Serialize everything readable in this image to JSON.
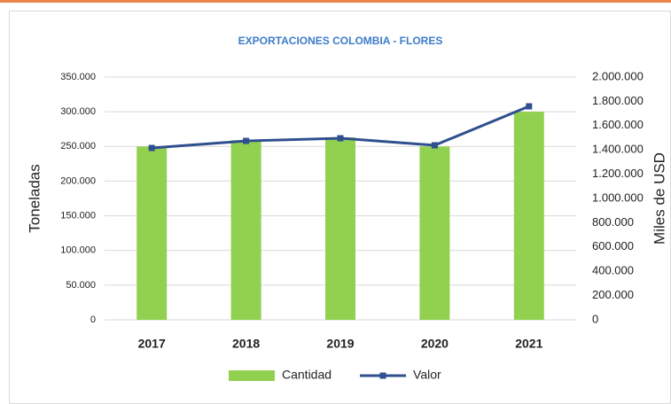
{
  "chart_data": {
    "type": "bar-line",
    "title": "EXPORTACIONES COLOMBIA - FLORES",
    "categories": [
      "2017",
      "2018",
      "2019",
      "2020",
      "2021"
    ],
    "series": [
      {
        "name": "Cantidad",
        "color": "#92d050",
        "type": "bar",
        "values": [
          250000,
          259000,
          263000,
          250000,
          300000
        ]
      },
      {
        "name": "Valor",
        "color": "#2f4f8f",
        "type": "line",
        "axis": "y2",
        "values": [
          1416000,
          1474000,
          1496000,
          1438000,
          1759000
        ]
      }
    ],
    "y_label": "Toneladas",
    "y2_label": "Miles de USD",
    "ylim": [
      0,
      350000
    ],
    "yticks": [
      0,
      {
        "value": 50000,
        "label": "50.000"
      },
      {
        "value": 100000,
        "label": "100.000"
      },
      {
        "value": 150000,
        "label": "150.000"
      },
      {
        "value": 200000,
        "label": "200.000"
      },
      {
        "value": 250000,
        "label": "250.000"
      },
      {
        "value": 300000,
        "label": "300.000"
      },
      {
        "value": 350000,
        "label": "350.000"
      }
    ],
    "y2lim": [
      0,
      2000000
    ],
    "y2ticks": [
      0,
      {
        "value": 200000,
        "label": "200.000"
      },
      {
        "value": 400000,
        "label": "400.000"
      },
      {
        "value": 600000,
        "label": "600.000"
      },
      {
        "value": 800000,
        "label": "800.000"
      },
      {
        "value": 1000000,
        "label": "1.000.000"
      },
      {
        "value": 1200000,
        "label": "1.200.000"
      },
      {
        "value": 1400000,
        "label": "1.400.000"
      },
      {
        "value": 1600000,
        "label": "1.600.000"
      },
      {
        "value": 1800000,
        "label": "1.800.000"
      },
      {
        "value": 2000000,
        "label": "2.000.000"
      }
    ],
    "grid": true,
    "legend": "bottom"
  }
}
